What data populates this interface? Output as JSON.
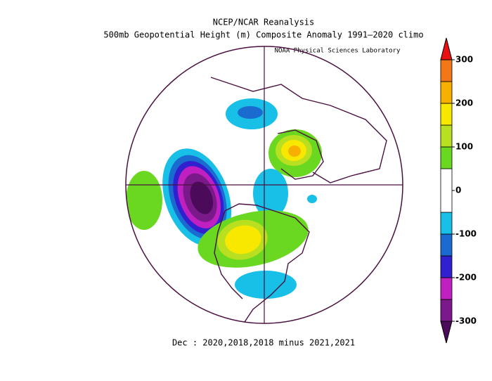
{
  "header": {
    "title": "NCEP/NCAR Reanalysis",
    "subtitle": "500mb Geopotential Height (m) Composite Anomaly 1991–2020 climo",
    "credit": "NOAA Physical Sciences Laboratory"
  },
  "footer": "Dec : 2020,2018,2018 minus 2021,2021",
  "colorbar": {
    "lim": [
      -300,
      300
    ],
    "ticks": [
      300,
      200,
      100,
      0,
      -100,
      -200,
      -300
    ],
    "bounds": [
      -300,
      -250,
      -200,
      -150,
      -100,
      -50,
      50,
      100,
      150,
      200,
      250,
      300
    ],
    "colors": [
      "#4b0a5a",
      "#7a1a8a",
      "#c020c0",
      "#3020d0",
      "#1a6ad0",
      "#18c0e8",
      "#ffffff",
      "#6ad820",
      "#b8e020",
      "#f8e800",
      "#f8b000",
      "#f07818",
      "#e81010"
    ]
  }
}
